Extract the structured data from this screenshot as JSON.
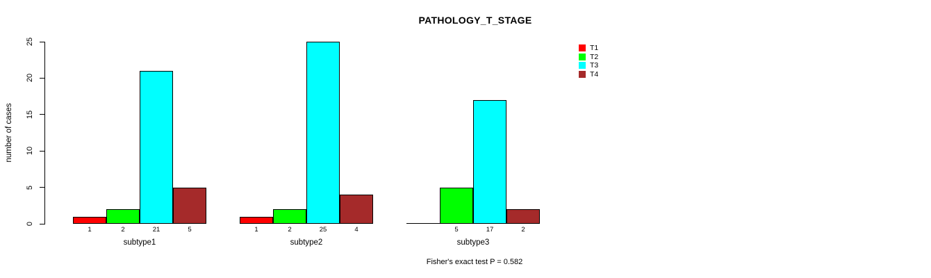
{
  "chart_data": {
    "type": "bar",
    "title": "PATHOLOGY_T_STAGE",
    "ylabel": "number of cases",
    "xlabel": "",
    "ylim": [
      0,
      25
    ],
    "yticks": [
      0,
      5,
      10,
      15,
      20,
      25
    ],
    "grid": false,
    "legend_position": "right",
    "show_bar_value_labels": true,
    "categories": [
      "subtype1",
      "subtype2",
      "subtype3"
    ],
    "series": [
      {
        "name": "T1",
        "color": "#ff0000",
        "values": [
          1,
          1,
          0
        ]
      },
      {
        "name": "T2",
        "color": "#00ff00",
        "values": [
          2,
          2,
          5
        ]
      },
      {
        "name": "T3",
        "color": "#00ffff",
        "values": [
          21,
          25,
          17
        ]
      },
      {
        "name": "T4",
        "color": "#a52a2a",
        "values": [
          5,
          4,
          2
        ]
      }
    ],
    "footer": "Fisher's exact test P = 0.582"
  }
}
